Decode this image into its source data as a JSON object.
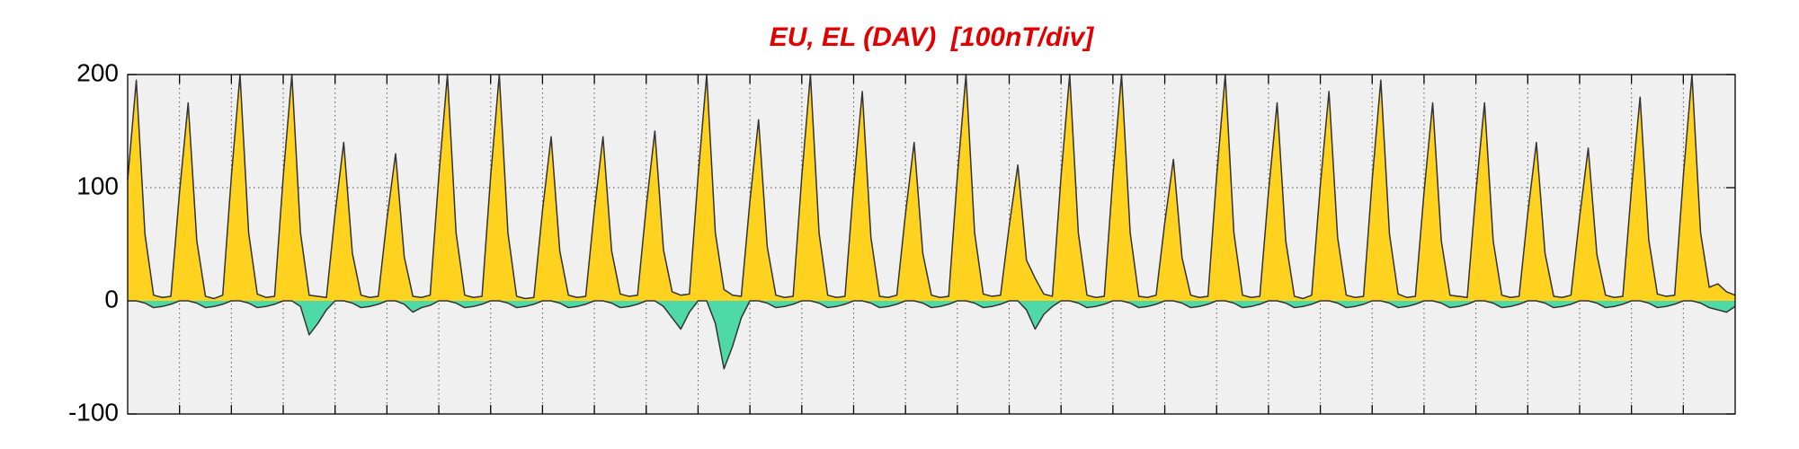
{
  "chart_data": {
    "type": "area",
    "title": "EU, EL (DAV)  [100nT/div]",
    "x": [
      0,
      4,
      8,
      12,
      16,
      20,
      24,
      28,
      32,
      36,
      40,
      44,
      48,
      52,
      56,
      60,
      64,
      68,
      72,
      76,
      80,
      84,
      88,
      92,
      96,
      100,
      104,
      108,
      112,
      116,
      120,
      124,
      128,
      132,
      136,
      140,
      144,
      148,
      152,
      156,
      160,
      164,
      168,
      172,
      176,
      180,
      184,
      188,
      192,
      196,
      200,
      204,
      208,
      212,
      216,
      220,
      224,
      228,
      232,
      236,
      240,
      244,
      248,
      252,
      256,
      260,
      264,
      268,
      272,
      276,
      280,
      284,
      288,
      292,
      296,
      300,
      304,
      308,
      312,
      316,
      320,
      324,
      328,
      332,
      336,
      340,
      344,
      348,
      352,
      356,
      360,
      364,
      368,
      372,
      376,
      380,
      384,
      388,
      392,
      396,
      400,
      404,
      408,
      412,
      416,
      420,
      424,
      428,
      432,
      436,
      440,
      444,
      448,
      452,
      456,
      460,
      464,
      468,
      472,
      476,
      480,
      484,
      488,
      492,
      496,
      500,
      504,
      508,
      512,
      516,
      520,
      524,
      528,
      532,
      536,
      540,
      544,
      548,
      552,
      556,
      560,
      564,
      568,
      572,
      576,
      580,
      584,
      588,
      592,
      596,
      600,
      604,
      608,
      612,
      616,
      620,
      624,
      628,
      632,
      636,
      640,
      644,
      648,
      652,
      656,
      660,
      664,
      668,
      672,
      676,
      680,
      684,
      688,
      692,
      696,
      700,
      704,
      708,
      712,
      716,
      720,
      724,
      728,
      732,
      736,
      740,
      744
    ],
    "series": [
      {
        "name": "EU",
        "color": "#ffd21f",
        "values": [
          107,
          195,
          59,
          5,
          3,
          4,
          96,
          175,
          53,
          4,
          2,
          5,
          110,
          200,
          60,
          6,
          3,
          4,
          110,
          200,
          60,
          5,
          4,
          3,
          77,
          140,
          42,
          5,
          3,
          4,
          72,
          130,
          39,
          4,
          3,
          5,
          110,
          200,
          60,
          5,
          3,
          4,
          110,
          200,
          60,
          4,
          2,
          3,
          80,
          145,
          44,
          5,
          3,
          4,
          80,
          145,
          44,
          6,
          4,
          5,
          83,
          150,
          45,
          8,
          5,
          6,
          110,
          200,
          60,
          10,
          5,
          4,
          88,
          160,
          48,
          5,
          3,
          4,
          110,
          200,
          60,
          5,
          3,
          4,
          102,
          185,
          56,
          4,
          3,
          5,
          77,
          140,
          42,
          5,
          3,
          4,
          110,
          200,
          60,
          6,
          4,
          5,
          66,
          120,
          36,
          20,
          6,
          4,
          110,
          200,
          60,
          5,
          3,
          4,
          110,
          200,
          60,
          4,
          3,
          5,
          69,
          125,
          38,
          5,
          3,
          4,
          110,
          200,
          60,
          5,
          3,
          4,
          96,
          175,
          53,
          4,
          2,
          5,
          102,
          185,
          56,
          5,
          3,
          4,
          107,
          195,
          59,
          6,
          3,
          4,
          96,
          175,
          53,
          5,
          4,
          3,
          96,
          175,
          53,
          5,
          3,
          4,
          77,
          140,
          42,
          4,
          3,
          5,
          74,
          135,
          41,
          5,
          3,
          4,
          99,
          180,
          54,
          6,
          4,
          5,
          110,
          200,
          60,
          12,
          15,
          8,
          5
        ]
      },
      {
        "name": "EL",
        "color": "#4fd9a8",
        "values": [
          0,
          0,
          -2,
          -6,
          -5,
          -3,
          0,
          0,
          -2,
          -6,
          -5,
          -3,
          0,
          0,
          -2,
          -6,
          -5,
          -3,
          0,
          0,
          -5,
          -30,
          -20,
          -8,
          0,
          0,
          -2,
          -6,
          -5,
          -3,
          0,
          0,
          -3,
          -10,
          -6,
          -4,
          0,
          0,
          -2,
          -6,
          -5,
          -3,
          0,
          0,
          -2,
          -6,
          -5,
          -3,
          0,
          0,
          -2,
          -6,
          -5,
          -3,
          0,
          0,
          -2,
          -6,
          -5,
          -3,
          0,
          0,
          -5,
          -15,
          -25,
          -10,
          0,
          0,
          -20,
          -60,
          -40,
          -15,
          0,
          0,
          -2,
          -6,
          -5,
          -3,
          0,
          0,
          -2,
          -6,
          -5,
          -3,
          0,
          0,
          -2,
          -6,
          -5,
          -3,
          0,
          0,
          -2,
          -6,
          -5,
          -3,
          0,
          0,
          -2,
          -6,
          -5,
          -3,
          0,
          0,
          -8,
          -25,
          -12,
          -5,
          0,
          0,
          -2,
          -6,
          -5,
          -3,
          0,
          0,
          -2,
          -6,
          -5,
          -3,
          0,
          0,
          -2,
          -6,
          -5,
          -3,
          0,
          0,
          -2,
          -6,
          -5,
          -3,
          0,
          0,
          -2,
          -6,
          -5,
          -3,
          0,
          0,
          -2,
          -6,
          -5,
          -3,
          0,
          0,
          -2,
          -6,
          -5,
          -3,
          0,
          0,
          -2,
          -6,
          -5,
          -3,
          0,
          0,
          -2,
          -6,
          -5,
          -3,
          0,
          0,
          -2,
          -6,
          -5,
          -3,
          0,
          0,
          -2,
          -6,
          -5,
          -3,
          0,
          0,
          -2,
          -6,
          -5,
          -3,
          0,
          0,
          -2,
          -6,
          -8,
          -10,
          -5
        ]
      }
    ],
    "line_color": "#333333",
    "xlim": [
      0,
      744
    ],
    "xticks": [
      24,
      48,
      72,
      96,
      120,
      144,
      168,
      192,
      216,
      240,
      264,
      288,
      312,
      336,
      360,
      384,
      408,
      432,
      456,
      480,
      504,
      528,
      552,
      576,
      600,
      624,
      648,
      672,
      696,
      720
    ],
    "ylim": [
      -100,
      200
    ],
    "yticks": [
      -100,
      0,
      100,
      200
    ],
    "grid": true
  }
}
